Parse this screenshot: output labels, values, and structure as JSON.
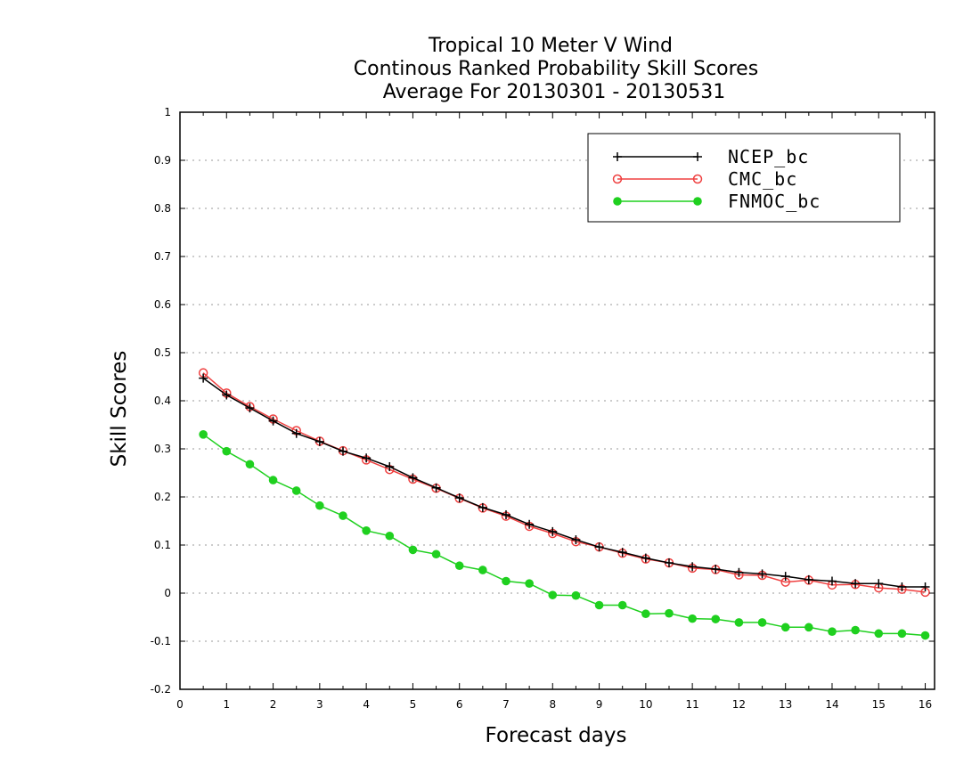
{
  "chart_data": {
    "type": "line",
    "title": [
      "Tropical 10 Meter V Wind",
      "Continous Ranked Probability Skill Scores",
      "Average For 20130301 - 20130531"
    ],
    "xlabel": "Forecast days",
    "ylabel": "Skill Scores",
    "xlim": [
      0,
      16.2
    ],
    "ylim": [
      -0.2,
      1
    ],
    "xticks": [
      "0",
      "1",
      "2",
      "3",
      "4",
      "5",
      "6",
      "7",
      "8",
      "9",
      "10",
      "11",
      "12",
      "13",
      "14",
      "15",
      "16"
    ],
    "yticks": [
      "1",
      "0.9",
      "0.8",
      "0.7",
      "0.6",
      "0.5",
      "0.4",
      "0.3",
      "0.2",
      "0.1",
      "0",
      "-0.1",
      "-0.2"
    ],
    "grid": "horizontal dotted",
    "legend_position": "top-right",
    "x": [
      0.5,
      1,
      1.5,
      2,
      2.5,
      3,
      3.5,
      4,
      4.5,
      5,
      5.5,
      6,
      6.5,
      7,
      7.5,
      8,
      8.5,
      9,
      9.5,
      10,
      10.5,
      11,
      11.5,
      12,
      12.5,
      13,
      13.5,
      14,
      14.5,
      15,
      15.5,
      16
    ],
    "series": [
      {
        "name": "NCEP_bc",
        "color": "#000000",
        "marker": "plus",
        "values": [
          0.447,
          0.412,
          0.385,
          0.358,
          0.332,
          0.315,
          0.295,
          0.281,
          0.263,
          0.24,
          0.219,
          0.198,
          0.178,
          0.163,
          0.143,
          0.128,
          0.111,
          0.096,
          0.085,
          0.073,
          0.063,
          0.055,
          0.05,
          0.043,
          0.04,
          0.035,
          0.028,
          0.025,
          0.02,
          0.02,
          0.013,
          0.013
        ]
      },
      {
        "name": "CMC_bc",
        "color": "#ef4040",
        "marker": "open-circle",
        "values": [
          0.458,
          0.416,
          0.388,
          0.362,
          0.338,
          0.316,
          0.296,
          0.277,
          0.257,
          0.237,
          0.218,
          0.197,
          0.177,
          0.16,
          0.139,
          0.124,
          0.107,
          0.096,
          0.083,
          0.071,
          0.063,
          0.052,
          0.049,
          0.038,
          0.037,
          0.023,
          0.027,
          0.017,
          0.018,
          0.011,
          0.008,
          0.002
        ]
      },
      {
        "name": "FNMOC_bc",
        "color": "#1fd01f",
        "marker": "filled-circle",
        "values": [
          0.33,
          0.295,
          0.268,
          0.235,
          0.213,
          0.182,
          0.161,
          0.13,
          0.119,
          0.09,
          0.081,
          0.057,
          0.048,
          0.025,
          0.02,
          -0.004,
          -0.005,
          -0.025,
          -0.025,
          -0.043,
          -0.042,
          -0.053,
          -0.054,
          -0.061,
          -0.061,
          -0.071,
          -0.071,
          -0.08,
          -0.077,
          -0.084,
          -0.084,
          -0.088
        ]
      }
    ]
  }
}
